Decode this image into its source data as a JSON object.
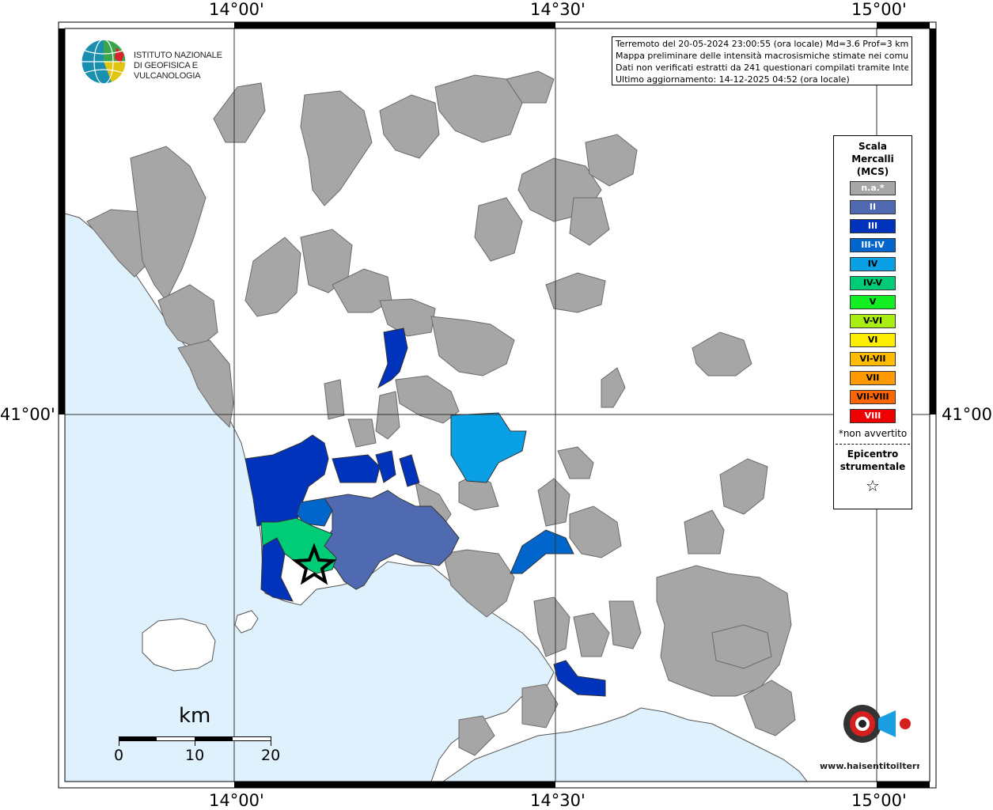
{
  "coordinates": {
    "top": [
      "14°00'",
      "14°30'",
      "15°00'"
    ],
    "bottom": [
      "14°00'",
      "14°30'",
      "15°00'"
    ],
    "left": "41°00'",
    "right": "41°00'"
  },
  "logo": {
    "line1": "ISTITUTO NAZIONALE",
    "line2": "DI GEOFISICA E VULCANOLOGIA"
  },
  "info": {
    "line1": "Terremoto del 20-05-2024 23:00:55 (ora locale) Md=3.6 Prof=3 km",
    "line2": "Mappa preliminare delle intensità macrosismiche stimate nei comuni",
    "line3": "Dati non verificati estratti da 241 questionari compilati tramite Internet.",
    "line4": "Ultimo aggiornamento: 14-12-2025 04:52 (ora locale)"
  },
  "legend": {
    "title1": "Scala",
    "title2": "Mercalli",
    "title3": "(MCS)",
    "items": [
      {
        "label": "n.a.*",
        "color": "#a6a6a6",
        "text_color": "#ffffff"
      },
      {
        "label": "II",
        "color": "#4f6ab0",
        "text_color": "#ffffff"
      },
      {
        "label": "III",
        "color": "#0033bb",
        "text_color": "#ffffff"
      },
      {
        "label": "III-IV",
        "color": "#0066cc",
        "text_color": "#ffffff"
      },
      {
        "label": "IV",
        "color": "#0aa0e6",
        "text_color": "#000000"
      },
      {
        "label": "IV-V",
        "color": "#00cc77",
        "text_color": "#000000"
      },
      {
        "label": "V",
        "color": "#11ee22",
        "text_color": "#000000"
      },
      {
        "label": "V-VI",
        "color": "#aaee11",
        "text_color": "#000000"
      },
      {
        "label": "VI",
        "color": "#ffee00",
        "text_color": "#000000"
      },
      {
        "label": "VI-VII",
        "color": "#ffbb00",
        "text_color": "#000000"
      },
      {
        "label": "VII",
        "color": "#ff9900",
        "text_color": "#000000"
      },
      {
        "label": "VII-VIII",
        "color": "#ff6600",
        "text_color": "#000000"
      },
      {
        "label": "VIII",
        "color": "#ee0000",
        "text_color": "#ffffff"
      }
    ],
    "note": "*non avvertito",
    "epicenter1": "Epicentro",
    "epicenter2": "strumentale",
    "star": "☆"
  },
  "scale": {
    "unit": "km",
    "ticks": [
      "0",
      "10",
      "20"
    ]
  },
  "watermark": {
    "text": "www.haisentitoilterremoto.it"
  },
  "colors": {
    "sea": "#dff1fc",
    "land": "#ffffff",
    "no_data": "#a6a6a6",
    "border": "#6a6a6a"
  }
}
